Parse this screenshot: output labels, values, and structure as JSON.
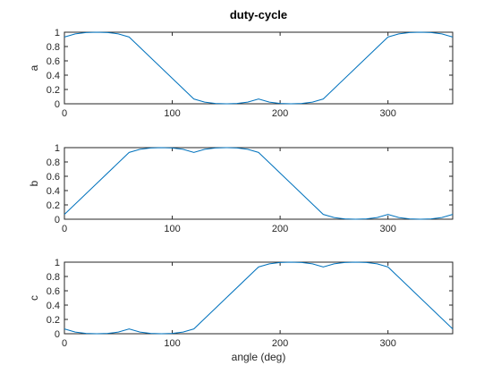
{
  "figure_title": "duty-cycle",
  "colors": {
    "line": "#0072bd",
    "axes": "#262626"
  },
  "chart_data": [
    {
      "type": "line",
      "title": "duty-cycle",
      "xlabel": "",
      "ylabel": "a",
      "xlim": [
        0,
        360
      ],
      "ylim": [
        0,
        1
      ],
      "xticks": [
        0,
        100,
        200,
        300
      ],
      "yticks": [
        0,
        0.2,
        0.4,
        0.6,
        0.8,
        1
      ],
      "grid": false,
      "series": [
        {
          "x": [
            0,
            10,
            20,
            30,
            40,
            50,
            60,
            90,
            120,
            130,
            140,
            150,
            160,
            170,
            180,
            190,
            200,
            210,
            220,
            230,
            240,
            270,
            300,
            310,
            320,
            330,
            340,
            350,
            360
          ],
          "values": [
            0.933,
            0.977,
            0.996,
            1.0,
            0.996,
            0.977,
            0.933,
            0.5,
            0.067,
            0.023,
            0.004,
            0.0,
            0.004,
            0.023,
            0.067,
            0.023,
            0.004,
            0.0,
            0.004,
            0.023,
            0.067,
            0.5,
            0.933,
            0.977,
            0.996,
            1.0,
            0.996,
            0.977,
            0.933
          ]
        }
      ]
    },
    {
      "type": "line",
      "title": "",
      "xlabel": "",
      "ylabel": "b",
      "xlim": [
        0,
        360
      ],
      "ylim": [
        0,
        1
      ],
      "xticks": [
        0,
        100,
        200,
        300
      ],
      "yticks": [
        0,
        0.2,
        0.4,
        0.6,
        0.8,
        1
      ],
      "grid": false,
      "series": [
        {
          "x": [
            0,
            30,
            60,
            70,
            80,
            90,
            100,
            110,
            120,
            130,
            140,
            150,
            160,
            170,
            180,
            210,
            240,
            250,
            260,
            270,
            280,
            290,
            300,
            310,
            320,
            330,
            340,
            350,
            360
          ],
          "values": [
            0.067,
            0.5,
            0.933,
            0.977,
            0.996,
            1.0,
            0.996,
            0.977,
            0.933,
            0.977,
            0.996,
            1.0,
            0.996,
            0.977,
            0.933,
            0.5,
            0.067,
            0.023,
            0.004,
            0.0,
            0.004,
            0.023,
            0.067,
            0.023,
            0.004,
            0.0,
            0.004,
            0.023,
            0.067
          ]
        }
      ]
    },
    {
      "type": "line",
      "title": "",
      "xlabel": "angle (deg)",
      "ylabel": "c",
      "xlim": [
        0,
        360
      ],
      "ylim": [
        0,
        1
      ],
      "xticks": [
        0,
        100,
        200,
        300
      ],
      "yticks": [
        0,
        0.2,
        0.4,
        0.6,
        0.8,
        1
      ],
      "grid": false,
      "series": [
        {
          "x": [
            0,
            10,
            20,
            30,
            40,
            50,
            60,
            70,
            80,
            90,
            100,
            110,
            120,
            150,
            180,
            190,
            200,
            210,
            220,
            230,
            240,
            250,
            260,
            270,
            280,
            290,
            300,
            330,
            360
          ],
          "values": [
            0.067,
            0.023,
            0.004,
            0.0,
            0.004,
            0.023,
            0.067,
            0.023,
            0.004,
            0.0,
            0.004,
            0.023,
            0.067,
            0.5,
            0.933,
            0.977,
            0.996,
            1.0,
            0.996,
            0.977,
            0.933,
            0.977,
            0.996,
            1.0,
            0.996,
            0.977,
            0.933,
            0.5,
            0.067
          ]
        }
      ]
    }
  ]
}
